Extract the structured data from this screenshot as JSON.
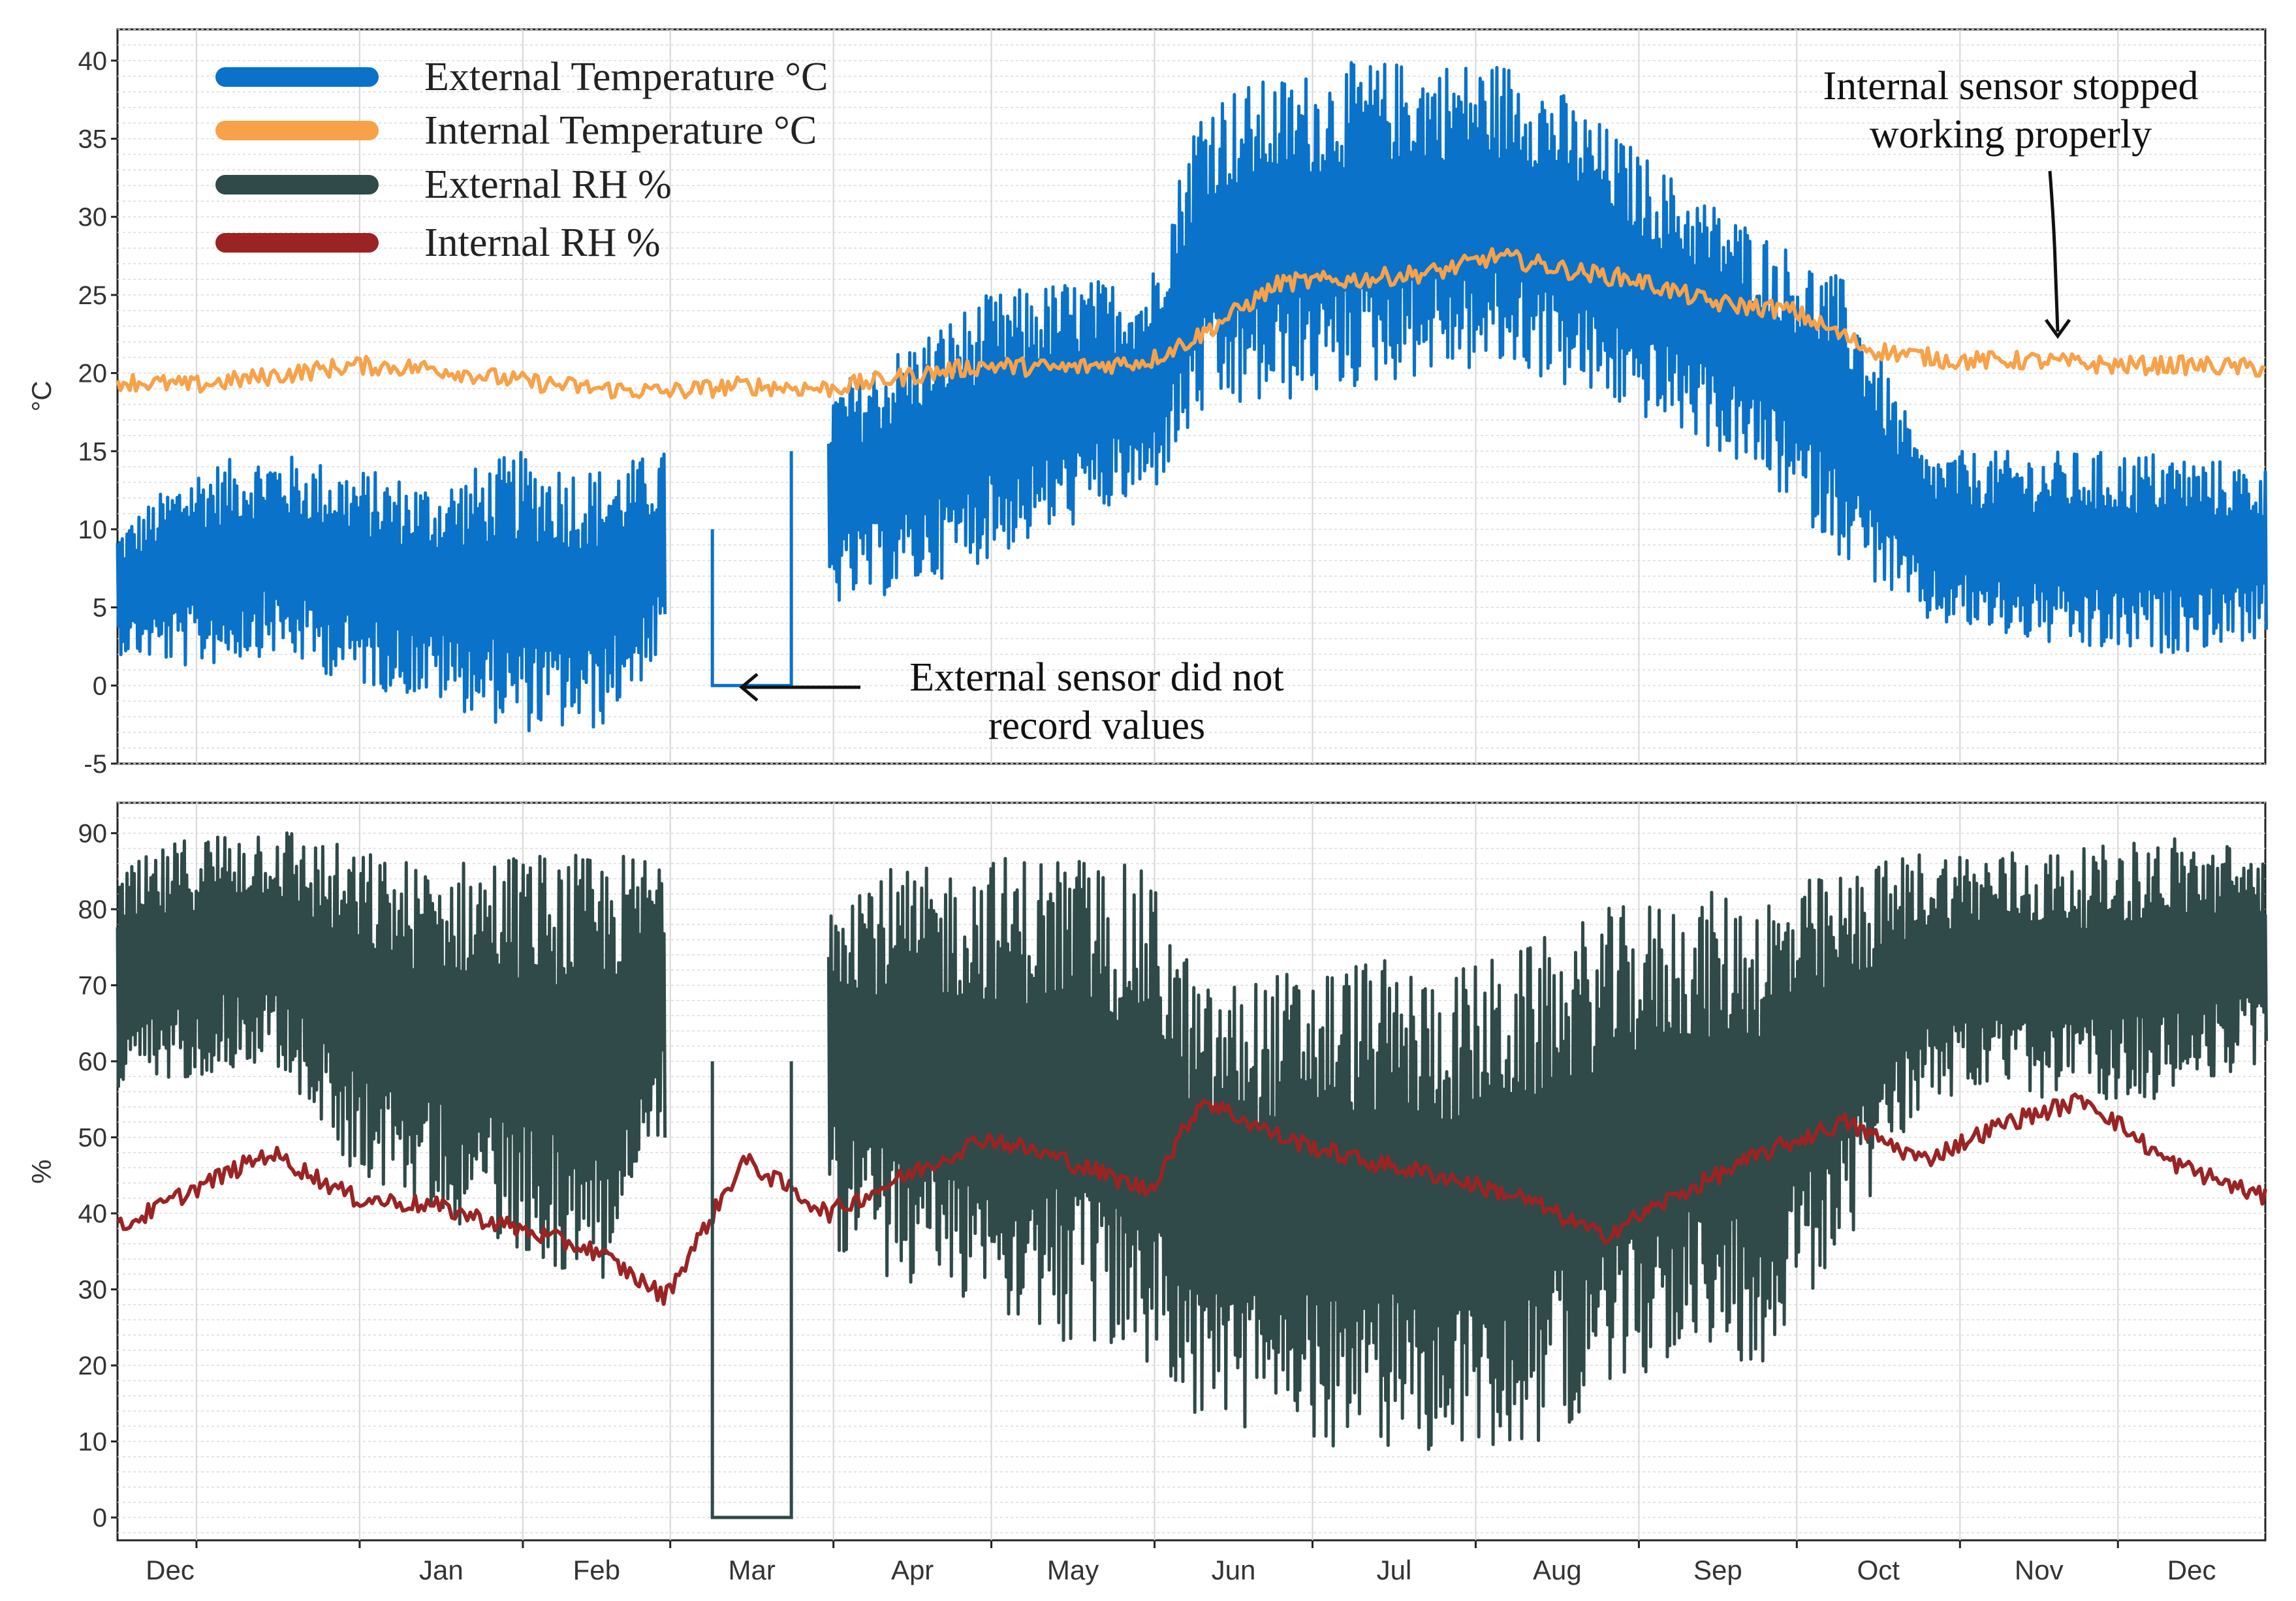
{
  "chart_data": [
    {
      "type": "line",
      "panel": "temperature",
      "ylabel": "°C",
      "ylim": [
        -5,
        42
      ],
      "yticks": [
        -5,
        0,
        5,
        10,
        15,
        20,
        25,
        30,
        35,
        40
      ],
      "xlim": [
        "2020-11-16",
        "2021-12-29"
      ],
      "grid": true,
      "legend": "top-left",
      "series": [
        {
          "name": "External Temperature °C",
          "color": "#0a72c9",
          "display": "band",
          "x": [
            "2020-11-16",
            "2020-11-30",
            "2020-12-15",
            "2020-12-31",
            "2021-01-15",
            "2021-01-31",
            "2021-02-15",
            "2021-02-28",
            "2021-03-09",
            "2021-03-15",
            "2021-03-20",
            "2021-03-31",
            "2021-04-15",
            "2021-04-30",
            "2021-05-15",
            "2021-05-31",
            "2021-06-10",
            "2021-06-25",
            "2021-07-10",
            "2021-07-25",
            "2021-08-10",
            "2021-08-25",
            "2021-09-10",
            "2021-09-25",
            "2021-10-10",
            "2021-10-25",
            "2021-11-10",
            "2021-11-25",
            "2021-12-10",
            "2021-12-29"
          ],
          "low": [
            2,
            1,
            2,
            0,
            -1,
            -3,
            -3,
            2,
            null,
            null,
            null,
            5,
            6,
            8,
            10,
            12,
            17,
            18,
            19,
            20,
            20,
            18,
            16,
            13,
            8,
            4,
            3,
            2,
            2,
            3
          ],
          "high": [
            10,
            14,
            15,
            14,
            13,
            15,
            14,
            15,
            null,
            null,
            null,
            19,
            22,
            25,
            26,
            26,
            38,
            39,
            40,
            40,
            40,
            36,
            32,
            29,
            26,
            15,
            15,
            15,
            15,
            14
          ]
        },
        {
          "name": "Internal Temperature °C",
          "color": "#f7a24a",
          "display": "line",
          "x": [
            "2020-11-16",
            "2020-11-30",
            "2020-12-15",
            "2020-12-31",
            "2021-01-15",
            "2021-01-31",
            "2021-02-15",
            "2021-02-28",
            "2021-03-15",
            "2021-03-31",
            "2021-04-15",
            "2021-04-30",
            "2021-05-15",
            "2021-05-31",
            "2021-06-10",
            "2021-06-25",
            "2021-07-10",
            "2021-07-25",
            "2021-08-05",
            "2021-08-20",
            "2021-08-31",
            "2021-09-15",
            "2021-09-30",
            "2021-10-15",
            "2021-10-31",
            "2021-11-15",
            "2021-11-30",
            "2021-12-15",
            "2021-12-29"
          ],
          "y": [
            19.5,
            19.2,
            19.8,
            20.5,
            20.3,
            19.5,
            19.0,
            18.8,
            19.2,
            19.0,
            19.8,
            20.5,
            20.3,
            20.8,
            22.5,
            25.8,
            26.0,
            26.5,
            27.5,
            26.5,
            26.0,
            24.5,
            24.0,
            21.5,
            20.8,
            20.8,
            20.5,
            20.5,
            20.3
          ]
        }
      ],
      "annotations": [
        {
          "lines": [
            "External sensor did not",
            "record values"
          ]
        },
        {
          "lines": [
            "Internal sensor stopped",
            "working properly"
          ]
        }
      ]
    },
    {
      "type": "line",
      "panel": "humidity",
      "ylabel": "%",
      "ylim": [
        -3,
        94
      ],
      "yticks": [
        0,
        10,
        20,
        30,
        40,
        50,
        60,
        70,
        80,
        90
      ],
      "xlim": [
        "2020-11-16",
        "2021-12-29"
      ],
      "grid": true,
      "series": [
        {
          "name": "External RH %",
          "color": "#2f4a48",
          "display": "band",
          "x": [
            "2020-11-16",
            "2020-11-30",
            "2020-12-15",
            "2020-12-31",
            "2021-01-15",
            "2021-01-31",
            "2021-02-15",
            "2021-02-28",
            "2021-03-09",
            "2021-03-15",
            "2021-03-20",
            "2021-03-31",
            "2021-04-15",
            "2021-04-30",
            "2021-05-15",
            "2021-05-31",
            "2021-06-10",
            "2021-06-25",
            "2021-07-10",
            "2021-07-25",
            "2021-08-10",
            "2021-08-25",
            "2021-09-10",
            "2021-09-25",
            "2021-10-10",
            "2021-10-25",
            "2021-11-10",
            "2021-11-25",
            "2021-12-10",
            "2021-12-29"
          ],
          "low": [
            55,
            58,
            60,
            45,
            40,
            35,
            30,
            50,
            null,
            null,
            null,
            35,
            30,
            28,
            22,
            20,
            12,
            10,
            9,
            8,
            9,
            15,
            22,
            20,
            35,
            55,
            55,
            55,
            55,
            60
          ],
          "high": [
            85,
            90,
            92,
            88,
            86,
            88,
            87,
            88,
            null,
            null,
            null,
            88,
            85,
            87,
            88,
            85,
            70,
            72,
            74,
            72,
            75,
            80,
            82,
            83,
            85,
            88,
            88,
            88,
            90,
            88
          ]
        },
        {
          "name": "Internal RH %",
          "color": "#9a2424",
          "display": "line",
          "x": [
            "2020-11-16",
            "2020-11-30",
            "2020-12-15",
            "2020-12-31",
            "2021-01-15",
            "2021-01-31",
            "2021-02-15",
            "2021-02-28",
            "2021-03-15",
            "2021-03-31",
            "2021-04-15",
            "2021-04-30",
            "2021-05-15",
            "2021-05-31",
            "2021-06-10",
            "2021-06-25",
            "2021-07-10",
            "2021-07-25",
            "2021-08-10",
            "2021-08-25",
            "2021-09-10",
            "2021-09-25",
            "2021-10-10",
            "2021-10-25",
            "2021-11-10",
            "2021-11-25",
            "2021-12-10",
            "2021-12-29"
          ],
          "y": [
            38,
            43,
            48,
            42,
            41,
            38,
            35,
            29,
            47,
            40,
            45,
            50,
            47,
            43,
            55,
            50,
            47,
            45,
            42,
            37,
            43,
            48,
            52,
            47,
            52,
            55,
            47,
            42
          ]
        }
      ]
    }
  ],
  "months": [
    {
      "label": "Dec",
      "date": "2020-12-01"
    },
    {
      "label": "Jan",
      "date": "2021-01-01"
    },
    {
      "label": "Feb",
      "date": "2021-02-01"
    },
    {
      "label": "Mar",
      "date": "2021-03-01"
    },
    {
      "label": "Apr",
      "date": "2021-04-01"
    },
    {
      "label": "May",
      "date": "2021-05-01"
    },
    {
      "label": "Jun",
      "date": "2021-06-01"
    },
    {
      "label": "Jul",
      "date": "2021-07-01"
    },
    {
      "label": "Aug",
      "date": "2021-08-01"
    },
    {
      "label": "Sep",
      "date": "2021-09-01"
    },
    {
      "label": "Oct",
      "date": "2021-10-01"
    },
    {
      "label": "Nov",
      "date": "2021-11-01"
    },
    {
      "label": "Dec",
      "date": "2021-12-01"
    }
  ]
}
